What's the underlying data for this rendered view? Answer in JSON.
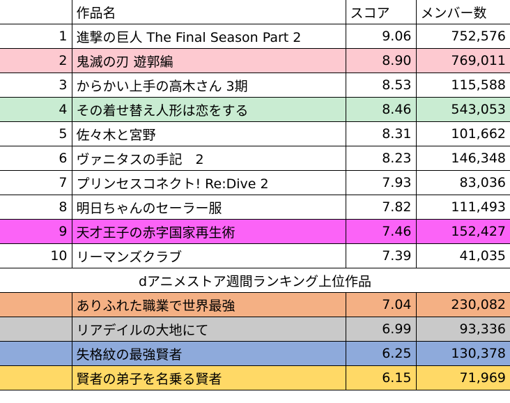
{
  "header": {
    "title": "作品名",
    "score": "スコア",
    "members": "メンバー数"
  },
  "ranking": [
    {
      "rank": "1",
      "title": "進撃の巨人 The Final Season Part 2",
      "score": "9.06",
      "members": "752,576"
    },
    {
      "rank": "2",
      "title": "鬼滅の刃 遊郭編",
      "score": "8.90",
      "members": "769,011",
      "color": "#fdc9d0"
    },
    {
      "rank": "3",
      "title": "からかい上手の高木さん 3期",
      "score": "8.53",
      "members": "115,588"
    },
    {
      "rank": "4",
      "title": "その着せ替え人形は恋をする",
      "score": "8.46",
      "members": "543,053",
      "color": "#c9ecd2"
    },
    {
      "rank": "5",
      "title": "佐々木と宮野",
      "score": "8.31",
      "members": "101,662"
    },
    {
      "rank": "6",
      "title": "ヴァニタスの手記　2",
      "score": "8.23",
      "members": "146,348"
    },
    {
      "rank": "7",
      "title": "プリンセスコネクト! Re:Dive 2",
      "score": "7.93",
      "members": "83,036"
    },
    {
      "rank": "8",
      "title": "明日ちゃんのセーラー服",
      "score": "7.82",
      "members": "111,493"
    },
    {
      "rank": "9",
      "title": "天才王子の赤字国家再生術",
      "score": "7.46",
      "members": "152,427",
      "color": "#fb63f7"
    },
    {
      "rank": "10",
      "title": "リーマンズクラブ",
      "score": "7.39",
      "members": "41,035"
    }
  ],
  "note": "dアニメストア週間ランキング上位作品",
  "extra": [
    {
      "title": "ありふれた職業で世界最強",
      "score": "7.04",
      "members": "230,082",
      "color": "#f4b084"
    },
    {
      "title": "リアデイルの大地にて",
      "score": "6.99",
      "members": "93,336",
      "color": "#c9c9c9"
    },
    {
      "title": "失格紋の最強賢者",
      "score": "6.25",
      "members": "130,378",
      "color": "#8eaadb"
    },
    {
      "title": "賢者の弟子を名乗る賢者",
      "score": "6.15",
      "members": "71,969",
      "color": "#ffd966"
    }
  ]
}
